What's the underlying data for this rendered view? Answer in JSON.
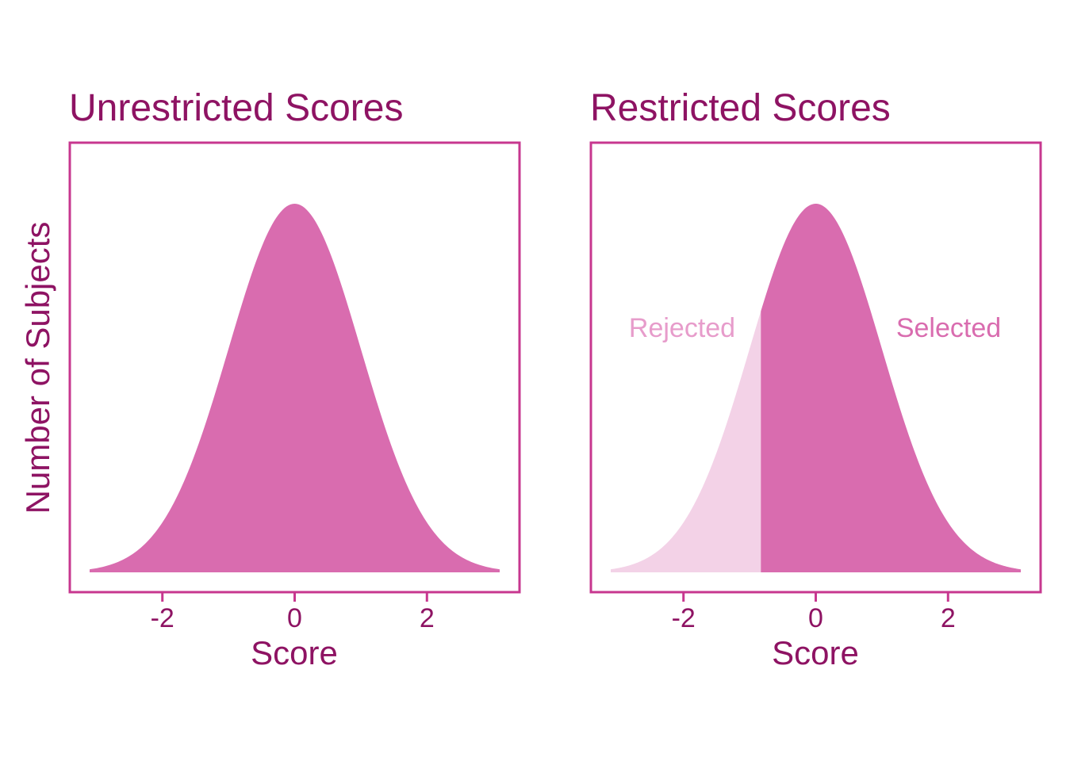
{
  "colors": {
    "text": "#8e1363",
    "frame": "#c7378f",
    "fill_main": "#d96caf",
    "fill_light": "#f3d2e7",
    "label_rejected": "#e79ccb",
    "label_selected": "#d96caf"
  },
  "chart_data": [
    {
      "type": "area",
      "title": "Unrestricted Scores",
      "xlabel": "Score",
      "ylabel": "Number of Subjects",
      "xlim": [
        -3.1,
        3.1
      ],
      "xticks": [
        -2,
        0,
        2
      ],
      "xtick_labels": [
        "-2",
        "0",
        "2"
      ],
      "distribution": "normal",
      "mean": 0,
      "sd": 1,
      "x_range": [
        -3.1,
        3.1
      ],
      "grid": false,
      "legend": "none"
    },
    {
      "type": "area",
      "title": "Restricted Scores",
      "xlabel": "Score",
      "ylabel": "",
      "xlim": [
        -3.1,
        3.1
      ],
      "xticks": [
        -2,
        0,
        2
      ],
      "xtick_labels": [
        "-2",
        "0",
        "2"
      ],
      "distribution": "normal",
      "mean": 0,
      "sd": 1,
      "x_range": [
        -3.1,
        3.1
      ],
      "cutoff": -0.83,
      "annotations": [
        "Rejected",
        "Selected"
      ],
      "grid": false,
      "legend": "none"
    }
  ]
}
